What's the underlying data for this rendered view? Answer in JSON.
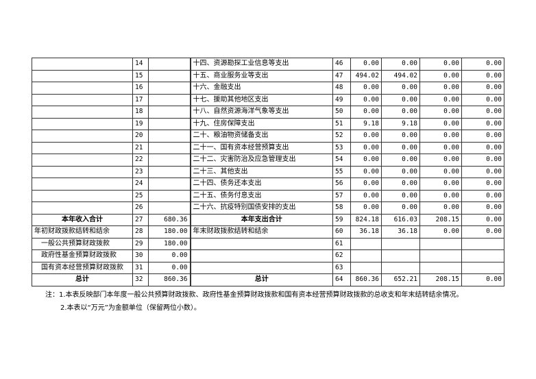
{
  "rows": [
    {
      "l": "",
      "ln": "14",
      "lv": "",
      "r": "十四、资源勘探工业信息等支出",
      "rn": "46",
      "c": [
        "0.00",
        "0.00",
        "0.00",
        "0.00"
      ]
    },
    {
      "l": "",
      "ln": "15",
      "lv": "",
      "r": "十五、商业服务业等支出",
      "rn": "47",
      "c": [
        "494.02",
        "494.02",
        "0.00",
        "0.00"
      ]
    },
    {
      "l": "",
      "ln": "16",
      "lv": "",
      "r": "十六、金融支出",
      "rn": "48",
      "c": [
        "0.00",
        "0.00",
        "0.00",
        "0.00"
      ]
    },
    {
      "l": "",
      "ln": "17",
      "lv": "",
      "r": "十七、援助其他地区支出",
      "rn": "49",
      "c": [
        "0.00",
        "0.00",
        "0.00",
        "0.00"
      ]
    },
    {
      "l": "",
      "ln": "18",
      "lv": "",
      "r": "十八、自然资源海洋气象等支出",
      "rn": "50",
      "c": [
        "0.00",
        "0.00",
        "0.00",
        "0.00"
      ]
    },
    {
      "l": "",
      "ln": "19",
      "lv": "",
      "r": "十九、住房保障支出",
      "rn": "51",
      "c": [
        "9.18",
        "9.18",
        "0.00",
        "0.00"
      ]
    },
    {
      "l": "",
      "ln": "20",
      "lv": "",
      "r": "二十、粮油物资储备支出",
      "rn": "52",
      "c": [
        "0.00",
        "0.00",
        "0.00",
        "0.00"
      ]
    },
    {
      "l": "",
      "ln": "21",
      "lv": "",
      "r": "二十一、国有资本经营预算支出",
      "rn": "53",
      "c": [
        "0.00",
        "0.00",
        "0.00",
        "0.00"
      ]
    },
    {
      "l": "",
      "ln": "22",
      "lv": "",
      "r": "二十二、灾害防治及应急管理支出",
      "rn": "54",
      "c": [
        "0.00",
        "0.00",
        "0.00",
        "0.00"
      ]
    },
    {
      "l": "",
      "ln": "23",
      "lv": "",
      "r": "二十三、其他支出",
      "rn": "55",
      "c": [
        "0.00",
        "0.00",
        "0.00",
        "0.00"
      ]
    },
    {
      "l": "",
      "ln": "24",
      "lv": "",
      "r": "二十四、债务还本支出",
      "rn": "56",
      "c": [
        "0.00",
        "0.00",
        "0.00",
        "0.00"
      ]
    },
    {
      "l": "",
      "ln": "25",
      "lv": "",
      "r": "二十五、债务付息支出",
      "rn": "57",
      "c": [
        "0.00",
        "0.00",
        "0.00",
        "0.00"
      ]
    },
    {
      "l": "",
      "ln": "26",
      "lv": "",
      "r": "二十六、抗疫特别国债安排的支出",
      "rn": "58",
      "c": [
        "0.00",
        "0.00",
        "0.00",
        "0.00"
      ]
    },
    {
      "l": "本年收入合计",
      "ln": "27",
      "lv": "680.36",
      "r": "本年支出合计",
      "rn": "59",
      "c": [
        "824.18",
        "616.03",
        "208.15",
        "0.00"
      ],
      "bold": true
    },
    {
      "l": "年初财政拨款结转和结余",
      "ln": "28",
      "lv": "180.00",
      "r": "年末财政拨款结转和结余",
      "rn": "60",
      "c": [
        "36.18",
        "36.18",
        "0.00",
        "0.00"
      ]
    },
    {
      "l": "　一般公共预算财政拨款",
      "ln": "29",
      "lv": "180.00",
      "r": "",
      "rn": "61",
      "c": [
        "",
        "",
        "",
        ""
      ]
    },
    {
      "l": "　政府性基金预算财政拨款",
      "ln": "30",
      "lv": "0.00",
      "r": "",
      "rn": "62",
      "c": [
        "",
        "",
        "",
        ""
      ]
    },
    {
      "l": "　国有资本经营预算财政拨款",
      "ln": "31",
      "lv": "0.00",
      "r": "",
      "rn": "63",
      "c": [
        "",
        "",
        "",
        ""
      ]
    },
    {
      "l": "总计",
      "ln": "32",
      "lv": "860.36",
      "r": "总计",
      "rn": "64",
      "c": [
        "860.36",
        "652.21",
        "208.15",
        "0.00"
      ],
      "bold": true
    }
  ],
  "notes": [
    "注：1.本表反映部门本年度一般公共预算财政拨款、政府性基金预算财政拨款和国有资本经营预算财政拨款的总收支和年末结转结余情况。",
    "2.本表以“万元”为金额单位（保留两位小数）。"
  ]
}
